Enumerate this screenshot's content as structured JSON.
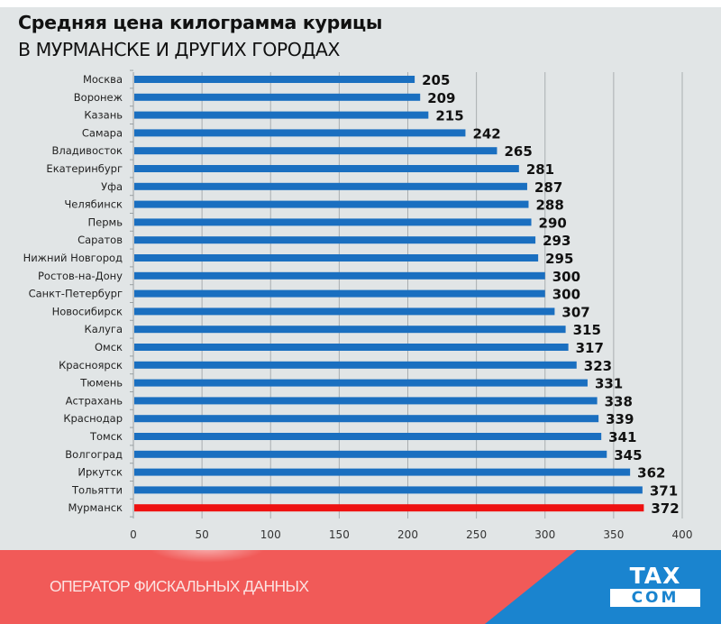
{
  "chart_data": {
    "type": "bar",
    "orientation": "horizontal",
    "title": "Средняя цена килограмма курицы",
    "subtitle": "В МУРМАНСКЕ И ДРУГИХ ГОРОДАХ",
    "xlabel": "",
    "ylabel": "",
    "xlim": [
      0,
      400
    ],
    "xticks": [
      0,
      50,
      100,
      150,
      200,
      250,
      300,
      350,
      400
    ],
    "grid": true,
    "legend": "none",
    "categories": [
      "Москва",
      "Воронеж",
      "Казань",
      "Самара",
      "Владивосток",
      "Екатеринбург",
      "Уфа",
      "Челябинск",
      "Пермь",
      "Саратов",
      "Нижний Новгород",
      "Ростов-на-Дону",
      "Санкт-Петербург",
      "Новосибирск",
      "Калуга",
      "Омск",
      "Красноярск",
      "Тюмень",
      "Астрахань",
      "Краснодар",
      "Томск",
      "Волгоград",
      "Иркутск",
      "Тольятти",
      "Мурманск"
    ],
    "values": [
      205,
      209,
      215,
      242,
      265,
      281,
      287,
      288,
      290,
      293,
      295,
      300,
      300,
      307,
      315,
      317,
      323,
      331,
      338,
      339,
      341,
      345,
      362,
      371,
      372
    ],
    "bar_color": "#1a6fc0",
    "highlight": {
      "category": "Мурманск",
      "color": "#ee1111"
    }
  },
  "footer": {
    "text": "ОПЕРАТОР ФИСКАЛЬНЫХ ДАННЫХ",
    "logo_top": "TAX",
    "logo_bottom": "COM",
    "red_color": "#f15a58",
    "blue_color": "#1a84cf"
  }
}
